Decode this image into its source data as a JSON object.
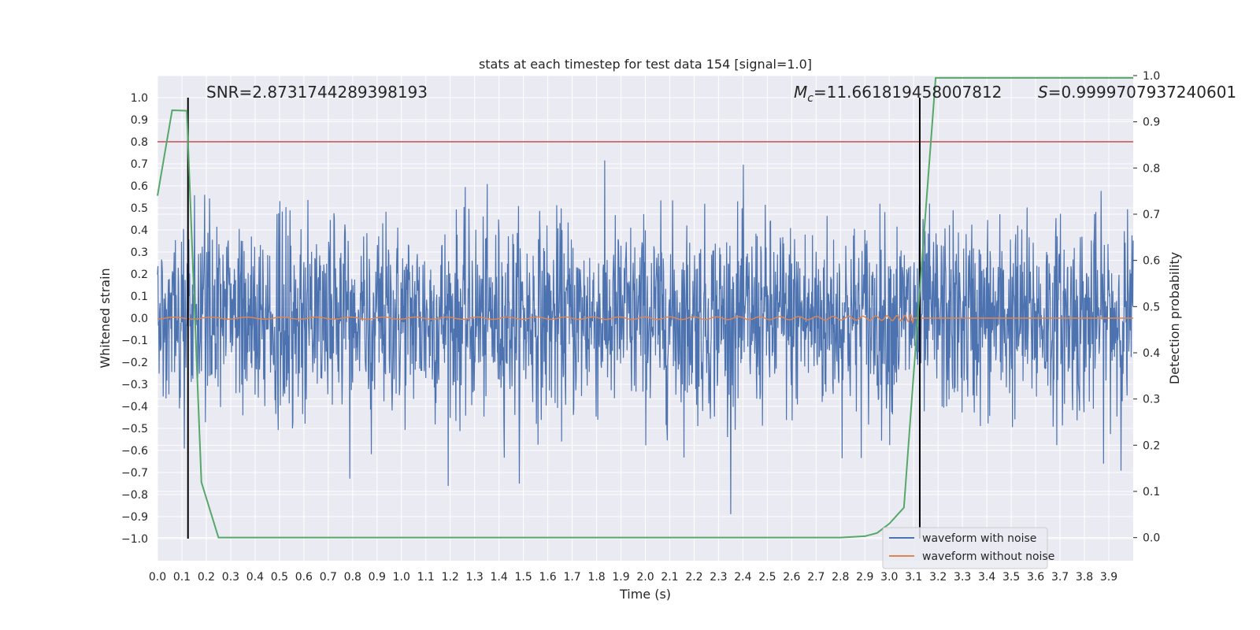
{
  "chart_data": {
    "type": "line",
    "title": "stats at each timestep for test data 154 [signal=1.0]",
    "xlabel": "Time (s)",
    "ylabel": "Whitened strain",
    "y2label": "Detection probability",
    "xlim": [
      0.0,
      4.0
    ],
    "ylim": [
      -1.1,
      1.1
    ],
    "y2lim": [
      -0.05,
      1.0
    ],
    "grid": true,
    "legend_position": "bottom-right",
    "x_ticks": [
      "0.0",
      "0.1",
      "0.2",
      "0.3",
      "0.4",
      "0.5",
      "0.6",
      "0.7",
      "0.8",
      "0.9",
      "1.0",
      "1.1",
      "1.2",
      "1.3",
      "1.4",
      "1.5",
      "1.6",
      "1.7",
      "1.8",
      "1.9",
      "2.0",
      "2.1",
      "2.2",
      "2.3",
      "2.4",
      "2.5",
      "2.6",
      "2.7",
      "2.8",
      "2.9",
      "3.0",
      "3.1",
      "3.2",
      "3.3",
      "3.4",
      "3.5",
      "3.6",
      "3.7",
      "3.8",
      "3.9"
    ],
    "y_ticks": [
      "1.0",
      "0.9",
      "0.8",
      "0.7",
      "0.6",
      "0.5",
      "0.4",
      "0.3",
      "0.2",
      "0.1",
      "0.0",
      "−0.1",
      "−0.2",
      "−0.3",
      "−0.4",
      "−0.5",
      "−0.6",
      "−0.7",
      "−0.8",
      "−0.9",
      "−1.0"
    ],
    "y_tick_values": [
      1.0,
      0.9,
      0.8,
      0.7,
      0.6,
      0.5,
      0.4,
      0.3,
      0.2,
      0.1,
      0.0,
      -0.1,
      -0.2,
      -0.3,
      -0.4,
      -0.5,
      -0.6,
      -0.7,
      -0.8,
      -0.9,
      -1.0
    ],
    "y2_ticks": [
      "1.0",
      "0.9",
      "0.8",
      "0.7",
      "0.6",
      "0.5",
      "0.4",
      "0.3",
      "0.2",
      "0.1",
      "0.0"
    ],
    "y2_tick_values": [
      1.0,
      0.9,
      0.8,
      0.7,
      0.6,
      0.5,
      0.4,
      0.3,
      0.2,
      0.1,
      0.0
    ],
    "annotations": {
      "snr": "SNR=2.8731744289398193",
      "mc_symbol": "M",
      "mc_subscript": "c",
      "mc_value": "=11.661819458007812",
      "s_symbol": "S",
      "s_value": "=0.9999707937240601"
    },
    "series": [
      {
        "name": "waveform with noise",
        "color": "#4c72b0",
        "kind": "noisy",
        "amplitude_range": [
          -1.0,
          1.0
        ]
      },
      {
        "name": "waveform without noise",
        "color": "#dd8452",
        "kind": "chirp",
        "merger_time": 3.1,
        "peak_amplitude": 0.13
      }
    ],
    "detection_probability": {
      "color": "#55a868",
      "x": [
        0.0,
        0.06,
        0.12,
        0.18,
        0.25,
        0.5,
        1.0,
        1.5,
        2.0,
        2.5,
        2.8,
        2.9,
        2.95,
        3.0,
        3.06,
        3.12,
        3.19,
        3.5,
        3.75,
        4.0
      ],
      "y": [
        0.74,
        0.925,
        0.924,
        0.12,
        0.0,
        0.0,
        0.0,
        0.0,
        0.0,
        0.0,
        0.0,
        0.003,
        0.01,
        0.03,
        0.065,
        0.5,
        0.995,
        0.995,
        0.995,
        0.995
      ]
    },
    "threshold_line": {
      "color": "#c44e52",
      "y": 0.8
    },
    "vertical_markers": {
      "color": "#000000",
      "x": [
        0.125,
        3.125
      ],
      "range": [
        -1.0,
        1.0
      ]
    }
  }
}
